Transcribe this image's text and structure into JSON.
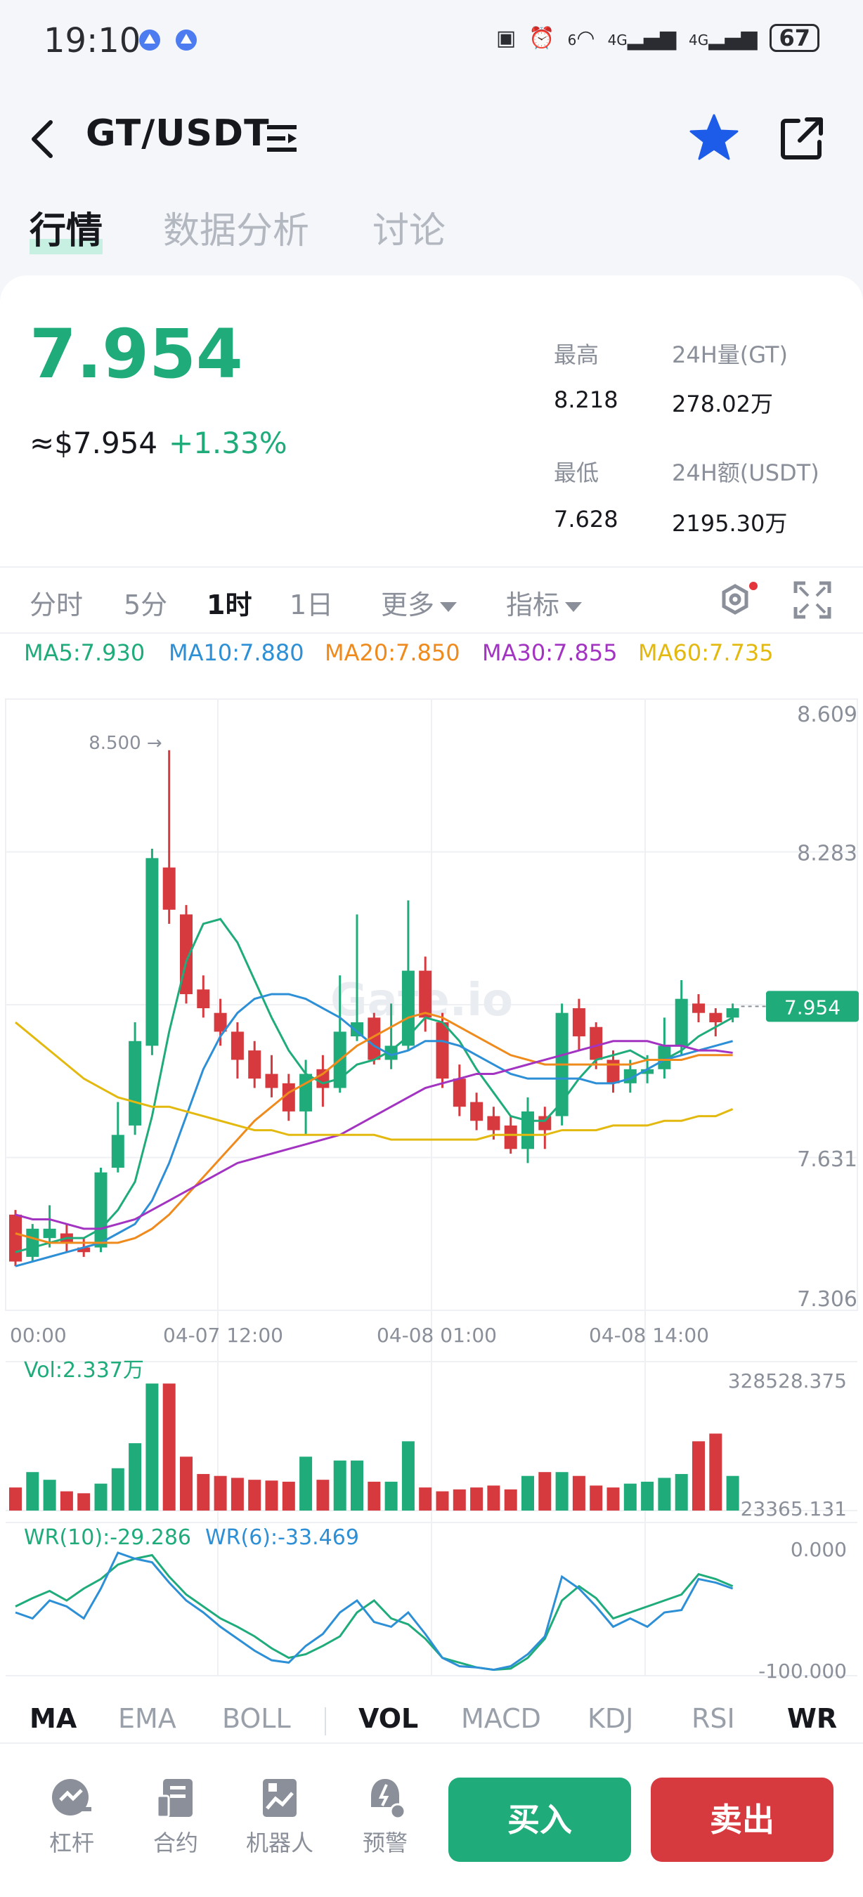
{
  "status_bar": {
    "time": "19:10",
    "network_1": "4G",
    "network_2": "4G",
    "wifi": "6",
    "battery": "67"
  },
  "header": {
    "pair": "GT/USDT"
  },
  "tabs": [
    {
      "label": "行情"
    },
    {
      "label": "数据分析"
    },
    {
      "label": "讨论"
    }
  ],
  "price": {
    "last": "7.954",
    "usd": "≈$7.954",
    "change": "+1.33%"
  },
  "stats": {
    "high_label": "最高",
    "high": "8.218",
    "low_label": "最低",
    "low": "7.628",
    "vol_label": "24H量(GT)",
    "vol": "278.02万",
    "amount_label": "24H额(USDT)",
    "amount": "2195.30万"
  },
  "intervals": [
    {
      "label": "分时"
    },
    {
      "label": "5分"
    },
    {
      "label": "1时"
    },
    {
      "label": "1日"
    },
    {
      "label": "更多"
    },
    {
      "label": "指标"
    }
  ],
  "ma_legend": [
    {
      "label": "MA5:7.930",
      "color": "#1fac7a"
    },
    {
      "label": "MA10:7.880",
      "color": "#2d8fd6"
    },
    {
      "label": "MA20:7.850",
      "color": "#ef8a1d"
    },
    {
      "label": "MA30:7.855",
      "color": "#a334c2"
    },
    {
      "label": "MA60:7.735",
      "color": "#e3b90f"
    }
  ],
  "colors": {
    "up": "#1fac7a",
    "down": "#d63a3f",
    "accent_blue": "#1d5ce8"
  },
  "chart_data": {
    "type": "candlestick",
    "y_ticks": [
      "8.609",
      "8.283",
      "7.631",
      "7.306"
    ],
    "ylim": [
      7.306,
      8.609
    ],
    "x_ticks": [
      "00:00",
      "04-07 12:00",
      "04-08 01:00",
      "04-08 14:00"
    ],
    "max_marker": "8.500 →",
    "current_price_tag": "7.954",
    "watermark": "Gate.io",
    "candles": [
      [
        7.51,
        7.41,
        7.52,
        7.4
      ],
      [
        7.42,
        7.48,
        7.49,
        7.41
      ],
      [
        7.46,
        7.48,
        7.53,
        7.44
      ],
      [
        7.47,
        7.45,
        7.49,
        7.43
      ],
      [
        7.44,
        7.43,
        7.46,
        7.42
      ],
      [
        7.44,
        7.6,
        7.61,
        7.43
      ],
      [
        7.61,
        7.68,
        7.75,
        7.6
      ],
      [
        7.7,
        7.88,
        7.92,
        7.68
      ],
      [
        7.87,
        8.27,
        8.29,
        7.85
      ],
      [
        8.25,
        8.16,
        8.5,
        8.13
      ],
      [
        8.15,
        7.98,
        8.17,
        7.96
      ],
      [
        7.99,
        7.95,
        8.02,
        7.93
      ],
      [
        7.94,
        7.9,
        7.97,
        7.87
      ],
      [
        7.9,
        7.84,
        7.92,
        7.8
      ],
      [
        7.86,
        7.8,
        7.88,
        7.78
      ],
      [
        7.81,
        7.78,
        7.85,
        7.76
      ],
      [
        7.79,
        7.73,
        7.81,
        7.71
      ],
      [
        7.73,
        7.81,
        7.84,
        7.68
      ],
      [
        7.82,
        7.78,
        7.85,
        7.74
      ],
      [
        7.78,
        7.9,
        8.02,
        7.77
      ],
      [
        7.89,
        7.92,
        8.15,
        7.88
      ],
      [
        7.93,
        7.84,
        7.94,
        7.83
      ],
      [
        7.84,
        7.87,
        7.96,
        7.82
      ],
      [
        7.87,
        8.03,
        8.18,
        7.86
      ],
      [
        8.03,
        7.93,
        8.06,
        7.9
      ],
      [
        7.92,
        7.8,
        7.94,
        7.78
      ],
      [
        7.8,
        7.74,
        7.83,
        7.72
      ],
      [
        7.75,
        7.71,
        7.77,
        7.69
      ],
      [
        7.72,
        7.69,
        7.74,
        7.67
      ],
      [
        7.7,
        7.65,
        7.72,
        7.64
      ],
      [
        7.65,
        7.73,
        7.76,
        7.62
      ],
      [
        7.72,
        7.69,
        7.74,
        7.65
      ],
      [
        7.72,
        7.94,
        7.96,
        7.7
      ],
      [
        7.95,
        7.89,
        7.97,
        7.86
      ],
      [
        7.91,
        7.84,
        7.92,
        7.82
      ],
      [
        7.84,
        7.79,
        7.86,
        7.77
      ],
      [
        7.79,
        7.82,
        7.84,
        7.77
      ],
      [
        7.81,
        7.82,
        7.85,
        7.79
      ],
      [
        7.82,
        7.87,
        7.93,
        7.8
      ],
      [
        7.87,
        7.97,
        8.01,
        7.85
      ],
      [
        7.96,
        7.94,
        7.98,
        7.92
      ],
      [
        7.94,
        7.92,
        7.95,
        7.89
      ],
      [
        7.93,
        7.95,
        7.96,
        7.92
      ]
    ],
    "ma_series": {
      "MA5": [
        7.43,
        7.44,
        7.45,
        7.46,
        7.46,
        7.48,
        7.52,
        7.58,
        7.72,
        7.9,
        8.05,
        8.13,
        8.14,
        8.09,
        8.01,
        7.93,
        7.86,
        7.81,
        7.79,
        7.8,
        7.83,
        7.84,
        7.86,
        7.89,
        7.93,
        7.92,
        7.88,
        7.82,
        7.77,
        7.72,
        7.71,
        7.71,
        7.75,
        7.8,
        7.84,
        7.85,
        7.86,
        7.84,
        7.84,
        7.86,
        7.89,
        7.91,
        7.93
      ],
      "MA10": [
        7.4,
        7.41,
        7.42,
        7.43,
        7.44,
        7.45,
        7.47,
        7.49,
        7.54,
        7.62,
        7.72,
        7.82,
        7.89,
        7.94,
        7.97,
        7.98,
        7.98,
        7.97,
        7.95,
        7.93,
        7.9,
        7.87,
        7.85,
        7.86,
        7.88,
        7.88,
        7.87,
        7.85,
        7.83,
        7.81,
        7.8,
        7.8,
        7.8,
        7.8,
        7.79,
        7.79,
        7.8,
        7.82,
        7.84,
        7.85,
        7.86,
        7.87,
        7.88
      ],
      "MA20": [
        7.47,
        7.46,
        7.45,
        7.45,
        7.45,
        7.45,
        7.45,
        7.46,
        7.48,
        7.51,
        7.55,
        7.59,
        7.63,
        7.67,
        7.71,
        7.74,
        7.77,
        7.79,
        7.81,
        7.84,
        7.87,
        7.89,
        7.91,
        7.93,
        7.94,
        7.93,
        7.91,
        7.89,
        7.87,
        7.85,
        7.84,
        7.83,
        7.83,
        7.83,
        7.83,
        7.83,
        7.83,
        7.84,
        7.84,
        7.84,
        7.85,
        7.85,
        7.85
      ],
      "MA30": [
        7.51,
        7.5,
        7.5,
        7.49,
        7.48,
        7.48,
        7.49,
        7.5,
        7.52,
        7.54,
        7.56,
        7.58,
        7.6,
        7.62,
        7.63,
        7.64,
        7.65,
        7.66,
        7.67,
        7.68,
        7.7,
        7.72,
        7.74,
        7.76,
        7.78,
        7.79,
        7.8,
        7.81,
        7.81,
        7.82,
        7.83,
        7.84,
        7.85,
        7.86,
        7.87,
        7.88,
        7.88,
        7.88,
        7.87,
        7.87,
        7.86,
        7.86,
        7.855
      ],
      "MA60": [
        7.92,
        7.89,
        7.86,
        7.83,
        7.8,
        7.78,
        7.76,
        7.75,
        7.74,
        7.74,
        7.73,
        7.72,
        7.71,
        7.7,
        7.69,
        7.69,
        7.68,
        7.68,
        7.68,
        7.68,
        7.68,
        7.68,
        7.67,
        7.67,
        7.67,
        7.67,
        7.67,
        7.67,
        7.68,
        7.68,
        7.68,
        7.68,
        7.69,
        7.69,
        7.69,
        7.7,
        7.7,
        7.7,
        7.71,
        7.71,
        7.72,
        7.72,
        7.735
      ]
    },
    "volume": {
      "label": "Vol:2.337万",
      "max_label": "328528.375",
      "min_label": "23365.131",
      "ylim": [
        23365.131,
        328528.375
      ],
      "values": [
        60000,
        100000,
        80000,
        50000,
        45000,
        70000,
        110000,
        175000,
        330000,
        330000,
        140000,
        95000,
        90000,
        85000,
        80000,
        78000,
        75000,
        140000,
        80000,
        130000,
        130000,
        75000,
        75000,
        180000,
        60000,
        50000,
        55000,
        60000,
        65000,
        55000,
        90000,
        100000,
        100000,
        90000,
        65000,
        60000,
        70000,
        75000,
        85000,
        95000,
        180000,
        200000,
        90000
      ]
    },
    "wr": {
      "label_1": "WR(10):-29.286",
      "label_2": "WR(6):-33.469",
      "max_label": "0.000",
      "min_label": "-100.000",
      "ylim": [
        -100,
        0
      ],
      "wr10": [
        -45,
        -38,
        -32,
        -40,
        -30,
        -22,
        -10,
        -5,
        -2,
        -20,
        -35,
        -45,
        -55,
        -62,
        -70,
        -80,
        -88,
        -85,
        -78,
        -70,
        -50,
        -40,
        -55,
        -60,
        -72,
        -88,
        -92,
        -96,
        -98,
        -97,
        -88,
        -72,
        -40,
        -28,
        -38,
        -55,
        -50,
        -45,
        -40,
        -35,
        -18,
        -22,
        -28
      ],
      "wr6": [
        -50,
        -55,
        -40,
        -45,
        -55,
        -30,
        0,
        -5,
        -8,
        -25,
        -40,
        -50,
        -62,
        -72,
        -82,
        -90,
        -92,
        -78,
        -68,
        -50,
        -40,
        -58,
        -62,
        -50,
        -68,
        -88,
        -95,
        -96,
        -98,
        -95,
        -85,
        -70,
        -20,
        -30,
        -45,
        -62,
        -55,
        -62,
        -50,
        -48,
        -22,
        -25,
        -30
      ]
    }
  },
  "indicators": [
    {
      "label": "MA",
      "on": true
    },
    {
      "label": "EMA",
      "on": false
    },
    {
      "label": "BOLL",
      "on": false
    },
    {
      "label": "VOL",
      "on": true
    },
    {
      "label": "MACD",
      "on": false
    },
    {
      "label": "KDJ",
      "on": false
    },
    {
      "label": "RSI",
      "on": false
    },
    {
      "label": "WR",
      "on": true
    }
  ],
  "tools": [
    {
      "label": "杠杆"
    },
    {
      "label": "合约"
    },
    {
      "label": "机器人"
    },
    {
      "label": "预警"
    }
  ],
  "actions": {
    "buy": "买入",
    "sell": "卖出"
  }
}
